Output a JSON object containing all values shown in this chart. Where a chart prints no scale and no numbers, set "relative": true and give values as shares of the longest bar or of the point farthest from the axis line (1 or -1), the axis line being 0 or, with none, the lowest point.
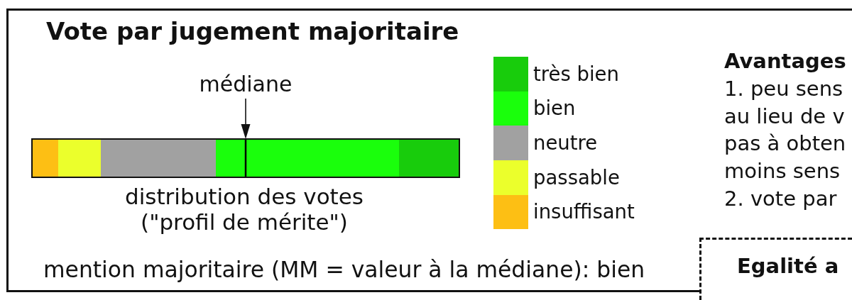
{
  "chart_data": {
    "type": "bar",
    "orientation": "horizontal",
    "stacked": true,
    "relative": true,
    "title": "Vote par jugement majoritaire",
    "categories": [
      null
    ],
    "series": [
      {
        "name": "insuffisant",
        "color": "#fdbf14",
        "values": [
          0.06
        ]
      },
      {
        "name": "passable",
        "color": "#ebff2c",
        "values": [
          0.1
        ]
      },
      {
        "name": "neutre",
        "color": "#a1a1a1",
        "values": [
          0.27
        ]
      },
      {
        "name": "bien",
        "color": "#1aff0c",
        "values": [
          0.43
        ]
      },
      {
        "name": "très bien",
        "color": "#18cc0c",
        "values": [
          0.14
        ]
      }
    ],
    "ref_lines": [
      {
        "axis": "x",
        "value": 0.5,
        "label": "médiane"
      }
    ],
    "legend": "right",
    "annotations": [
      "distribution des votes\n(\"profil de mérite\")",
      "mention majoritaire (MM = valeur à la médiane): bien",
      "Avantages",
      "1. peu sens",
      "au lieu de v",
      "pas à obten",
      "moins sens",
      "2. vote par",
      "Egalité a"
    ]
  }
}
